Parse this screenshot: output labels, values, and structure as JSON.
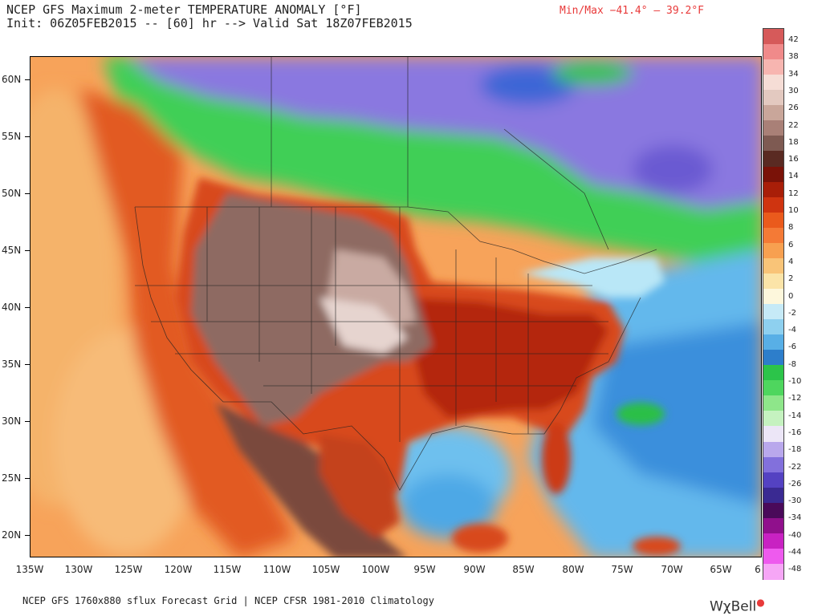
{
  "header": {
    "title_line1": "NCEP GFS Maximum 2-meter TEMPERATURE ANOMALY [°F]",
    "title_line2": "Init: 06Z05FEB2015 -- [60] hr --> Valid Sat 18Z07FEB2015",
    "minmax": "Min/Max −41.4° –  39.2°F"
  },
  "lat_labels": [
    "60N",
    "55N",
    "50N",
    "45N",
    "40N",
    "35N",
    "30N",
    "25N",
    "20N"
  ],
  "lon_labels": [
    "135W",
    "130W",
    "125W",
    "120W",
    "115W",
    "110W",
    "105W",
    "100W",
    "95W",
    "90W",
    "85W",
    "80W",
    "75W",
    "70W",
    "65W",
    "6"
  ],
  "legend": {
    "labels": [
      "42",
      "38",
      "34",
      "30",
      "26",
      "22",
      "18",
      "16",
      "14",
      "12",
      "10",
      "8",
      "6",
      "4",
      "2",
      "0",
      "-2",
      "-4",
      "-6",
      "-8",
      "-10",
      "-12",
      "-14",
      "-16",
      "-18",
      "-22",
      "-26",
      "-30",
      "-34",
      "-40",
      "-44",
      "-48"
    ],
    "colors": [
      "#d65a5a",
      "#f08a8a",
      "#f7b5b0",
      "#f6ddd6",
      "#e3c9c0",
      "#c9a69a",
      "#a98077",
      "#7e5a52",
      "#5a2a22",
      "#7a1208",
      "#a81e08",
      "#cf3410",
      "#ea5a1c",
      "#f47a36",
      "#f7a050",
      "#f9c478",
      "#fbe4a8",
      "#fdf7dc",
      "#c6eaf7",
      "#8ed0ef",
      "#58afe6",
      "#2d7ecb",
      "#2cc44a",
      "#4ed65e",
      "#8ee68a",
      "#c5f2c0",
      "#ece6f7",
      "#b9a8ec",
      "#8270dc",
      "#5442c2",
      "#3a2a92",
      "#4a0a5a",
      "#90108c",
      "#c822c2",
      "#ee5aee",
      "#f6a6f6"
    ]
  },
  "footer": {
    "left": "NCEP GFS 1760x880 sflux Forecast Grid | NCEP CFSR 1981-2010 Climatology",
    "brand": "WχBell"
  }
}
